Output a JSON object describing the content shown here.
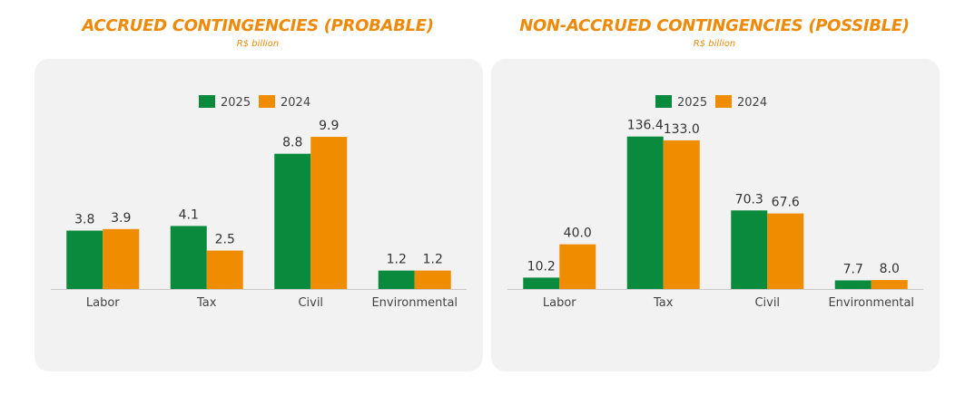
{
  "chart_data": [
    {
      "type": "bar",
      "title": "ACCRUED CONTINGENCIES (PROBABLE)",
      "subtitle": "R$ billion",
      "categories": [
        "Labor",
        "Tax",
        "Civil",
        "Environmental"
      ],
      "series": [
        {
          "name": "2025",
          "color": "#0A8A3C",
          "values": [
            3.8,
            4.1,
            8.8,
            1.2
          ],
          "labels": [
            "3.8",
            "4.1",
            "8.8",
            "1.2"
          ]
        },
        {
          "name": "2024",
          "color": "#F08C00",
          "values": [
            3.9,
            2.5,
            9.9,
            1.2
          ],
          "labels": [
            "3.9",
            "2.5",
            "9.9",
            "1.2"
          ]
        }
      ],
      "ylim": [
        0,
        11.2
      ],
      "legend": "top-center",
      "grid": false
    },
    {
      "type": "bar",
      "title": "NON-ACCRUED CONTINGENCIES (POSSIBLE)",
      "subtitle": "R$ billion",
      "categories": [
        "Labor",
        "Tax",
        "Civil",
        "Environmental"
      ],
      "series": [
        {
          "name": "2025",
          "color": "#0A8A3C",
          "values": [
            10.2,
            136.4,
            70.3,
            7.7
          ],
          "labels": [
            "10.2",
            "136.4",
            "70.3",
            "7.7"
          ]
        },
        {
          "name": "2024",
          "color": "#F08C00",
          "values": [
            40.0,
            133.0,
            67.6,
            8.0
          ],
          "labels": [
            "40.0",
            "133.0",
            "67.6",
            "8.0"
          ]
        }
      ],
      "ylim": [
        0,
        154
      ],
      "legend": "top-center",
      "grid": false
    }
  ]
}
